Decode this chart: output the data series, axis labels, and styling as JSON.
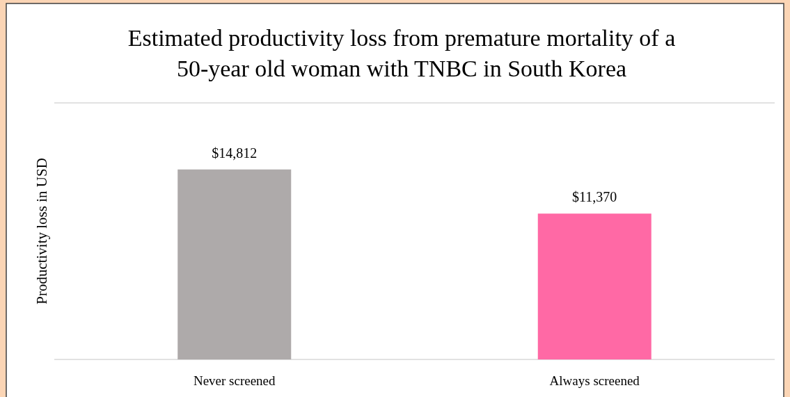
{
  "chart_data": {
    "type": "bar",
    "title": "Estimated productivity loss from premature mortality of a\n50-year old woman with TNBC in South Korea",
    "ylabel": "Productivity loss in USD",
    "categories": [
      "Never screened",
      "Always screened"
    ],
    "values": [
      14812,
      11370
    ],
    "colors": [
      "#aeaaaa",
      "#ff69a5"
    ],
    "value_labels": [
      "$14,812",
      "$11,370"
    ],
    "ylim": [
      0,
      20000
    ],
    "tick_labels": "x"
  }
}
